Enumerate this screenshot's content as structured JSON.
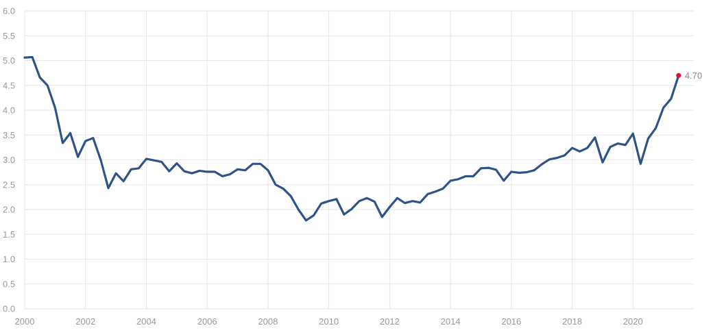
{
  "chart_data": {
    "type": "line",
    "title": "",
    "xlabel": "",
    "ylabel": "",
    "xlim": [
      2000,
      2021.6
    ],
    "ylim": [
      0,
      6
    ],
    "grid": true,
    "x_ticks": [
      "2000",
      "2002",
      "2004",
      "2006",
      "2008",
      "2010",
      "2012",
      "2014",
      "2016",
      "2018",
      "2020"
    ],
    "y_ticks": [
      "0.0",
      "0.5",
      "1.0",
      "1.5",
      "2.0",
      "2.5",
      "3.0",
      "3.5",
      "4.0",
      "4.5",
      "5.0",
      "5.5",
      "6.0"
    ],
    "series": [
      {
        "color": "#2e5389",
        "x": [
          2000.0,
          2000.25,
          2000.5,
          2000.75,
          2001.0,
          2001.25,
          2001.5,
          2001.75,
          2002.0,
          2002.25,
          2002.5,
          2002.75,
          2003.0,
          2003.25,
          2003.5,
          2003.75,
          2004.0,
          2004.25,
          2004.5,
          2004.75,
          2005.0,
          2005.25,
          2005.5,
          2005.75,
          2006.0,
          2006.25,
          2006.5,
          2006.75,
          2007.0,
          2007.25,
          2007.5,
          2007.75,
          2008.0,
          2008.25,
          2008.5,
          2008.75,
          2009.0,
          2009.25,
          2009.5,
          2009.75,
          2010.0,
          2010.25,
          2010.5,
          2010.75,
          2011.0,
          2011.25,
          2011.5,
          2011.75,
          2012.0,
          2012.25,
          2012.5,
          2012.75,
          2013.0,
          2013.25,
          2013.5,
          2013.75,
          2014.0,
          2014.25,
          2014.5,
          2014.75,
          2015.0,
          2015.25,
          2015.5,
          2015.75,
          2016.0,
          2016.25,
          2016.5,
          2016.75,
          2017.0,
          2017.25,
          2017.5,
          2017.75,
          2018.0,
          2018.25,
          2018.5,
          2018.75,
          2019.0,
          2019.25,
          2019.5,
          2019.75,
          2020.0,
          2020.25,
          2020.5,
          2020.75,
          2021.0,
          2021.25,
          2021.5
        ],
        "values": [
          5.06,
          5.07,
          4.66,
          4.5,
          4.05,
          3.34,
          3.54,
          3.06,
          3.38,
          3.44,
          3.0,
          2.43,
          2.73,
          2.57,
          2.81,
          2.83,
          3.02,
          2.99,
          2.96,
          2.77,
          2.93,
          2.77,
          2.73,
          2.78,
          2.76,
          2.76,
          2.67,
          2.71,
          2.81,
          2.79,
          2.92,
          2.92,
          2.79,
          2.5,
          2.42,
          2.27,
          2.0,
          1.78,
          1.88,
          2.12,
          2.17,
          2.21,
          1.9,
          2.01,
          2.17,
          2.23,
          2.16,
          1.85,
          2.05,
          2.23,
          2.13,
          2.17,
          2.14,
          2.31,
          2.36,
          2.42,
          2.58,
          2.61,
          2.67,
          2.67,
          2.83,
          2.84,
          2.8,
          2.58,
          2.76,
          2.74,
          2.75,
          2.79,
          2.91,
          3.01,
          3.04,
          3.09,
          3.24,
          3.17,
          3.24,
          3.45,
          2.95,
          3.26,
          3.33,
          3.3,
          3.53,
          2.92,
          3.43,
          3.64,
          4.05,
          4.23,
          4.7
        ]
      }
    ],
    "end_point": {
      "value": 4.7,
      "label": "4.70",
      "color": "#e0103a"
    }
  }
}
